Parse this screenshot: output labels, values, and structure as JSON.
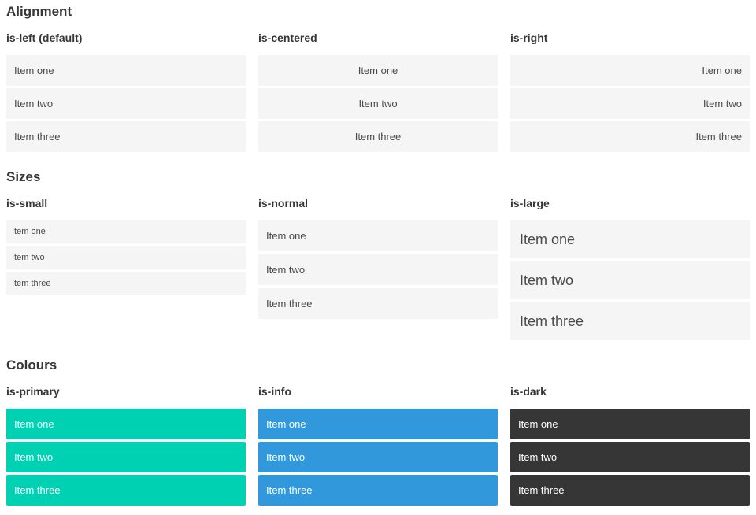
{
  "sections": [
    {
      "title": "Alignment",
      "columns": [
        {
          "label": "is-left (default)",
          "items": [
            "Item one",
            "Item two",
            "Item three"
          ]
        },
        {
          "label": "is-centered",
          "items": [
            "Item one",
            "Item two",
            "Item three"
          ]
        },
        {
          "label": "is-right",
          "items": [
            "Item one",
            "Item two",
            "Item three"
          ]
        }
      ]
    },
    {
      "title": "Sizes",
      "columns": [
        {
          "label": "is-small",
          "items": [
            "Item one",
            "Item two",
            "Item three"
          ]
        },
        {
          "label": "is-normal",
          "items": [
            "Item one",
            "Item two",
            "Item three"
          ]
        },
        {
          "label": "is-large",
          "items": [
            "Item one",
            "Item two",
            "Item three"
          ]
        }
      ]
    },
    {
      "title": "Colours",
      "columns": [
        {
          "label": "is-primary",
          "items": [
            "Item one",
            "Item two",
            "Item three"
          ]
        },
        {
          "label": "is-info",
          "items": [
            "Item one",
            "Item two",
            "Item three"
          ]
        },
        {
          "label": "is-dark",
          "items": [
            "Item one",
            "Item two",
            "Item three"
          ]
        }
      ]
    }
  ],
  "colors": {
    "primary": "#00d1b2",
    "info": "#3298dc",
    "dark": "#363636",
    "item_background": "#f5f5f5",
    "item_text": "#4a4a4a",
    "heading_text": "#363636",
    "colored_item_text": "#ffffff"
  }
}
